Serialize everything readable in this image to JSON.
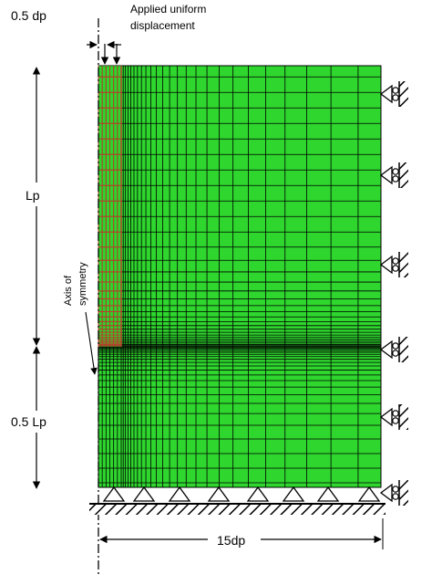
{
  "labels": {
    "half_dp": "0.5 dp",
    "applied_line1": "Applied uniform",
    "applied_line2": "displacement",
    "lp": "Lp",
    "half_lp": "0.5 Lp",
    "axis_line1": "Axis of",
    "axis_line2": "symmetry",
    "width": "15dp"
  },
  "colors": {
    "mesh_fill": "#2ed62e",
    "mesh_line": "#000000",
    "pile_line": "#c0392b",
    "support": "#000000"
  }
}
